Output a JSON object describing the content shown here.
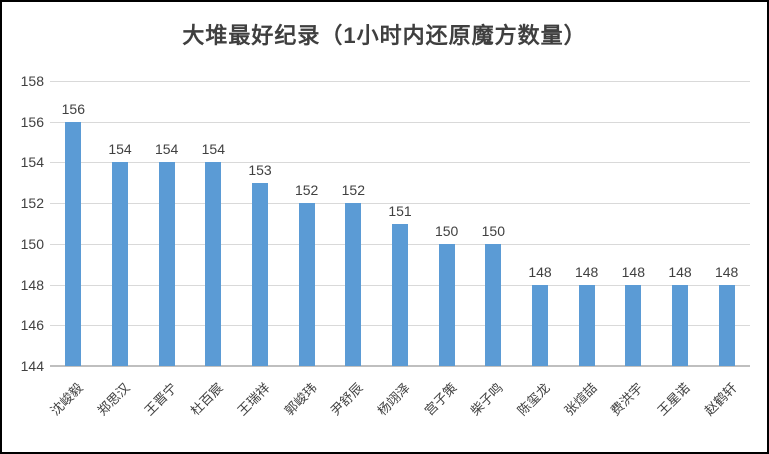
{
  "chart_data": {
    "type": "bar",
    "title": "大堆最好纪录（1小时内还原魔方数量）",
    "categories": [
      "沈峻毅",
      "郑思汉",
      "王晋宁",
      "杜百宸",
      "王瑞祥",
      "郭峻玮",
      "尹舒辰",
      "杨翊泽",
      "宫子策",
      "柴子鸣",
      "陈玺龙",
      "张煊喆",
      "费洪宇",
      "王星诺",
      "赵鹤轩"
    ],
    "values": [
      156,
      154,
      154,
      154,
      153,
      152,
      152,
      151,
      150,
      150,
      148,
      148,
      148,
      148,
      148
    ],
    "data_labels": [
      156,
      154,
      154,
      154,
      153,
      152,
      152,
      151,
      150,
      150,
      148,
      148,
      148,
      148,
      148
    ],
    "xlabel": "",
    "ylabel": "",
    "ylim": [
      144,
      158
    ],
    "yticks": [
      144,
      146,
      148,
      150,
      152,
      154,
      156,
      158
    ],
    "grid": true,
    "legend_position": "none",
    "colors": {
      "bar": "#5b9bd5",
      "gridline": "#d9d9d9",
      "axis_line": "#bfbfbf",
      "text": "#404040",
      "title_text": "#3f3f3f",
      "frame_border": "#000000"
    }
  }
}
